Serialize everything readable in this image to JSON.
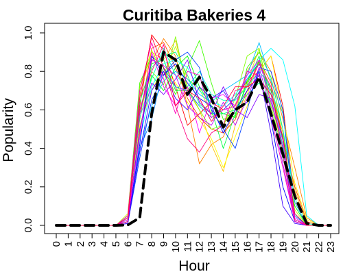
{
  "chart_data": {
    "type": "line",
    "title": "Curitiba Bakeries 4",
    "xlabel": "Hour",
    "ylabel": "Popularity",
    "x": [
      0,
      1,
      2,
      3,
      4,
      5,
      6,
      7,
      8,
      9,
      10,
      11,
      12,
      13,
      14,
      15,
      16,
      17,
      18,
      19,
      20,
      21,
      22,
      23
    ],
    "x_tick_labels": [
      "0",
      "1",
      "2",
      "3",
      "4",
      "5",
      "6",
      "7",
      "8",
      "9",
      "10",
      "11",
      "12",
      "13",
      "14",
      "15",
      "16",
      "17",
      "18",
      "19",
      "20",
      "21",
      "22",
      "23"
    ],
    "y_ticks": [
      0.0,
      0.2,
      0.4,
      0.6,
      0.8,
      1.0
    ],
    "y_tick_labels": [
      "0.0",
      "0.2",
      "0.4",
      "0.6",
      "0.8",
      "1.0"
    ],
    "xlim": [
      0,
      23
    ],
    "ylim": [
      0,
      1
    ],
    "grid": false,
    "legend": "none",
    "series": [
      {
        "color": "#FF0000",
        "values": [
          0,
          0,
          0,
          0,
          0,
          0,
          0.02,
          0.62,
          0.99,
          0.91,
          0.72,
          0.52,
          0.58,
          0.64,
          0.6,
          0.66,
          0.75,
          0.8,
          0.88,
          0.62,
          0.12,
          0,
          0,
          0
        ]
      },
      {
        "color": "#FF4000",
        "values": [
          0,
          0,
          0,
          0,
          0,
          0,
          0.05,
          0.55,
          0.92,
          0.95,
          0.82,
          0.66,
          0.56,
          0.5,
          0.48,
          0.55,
          0.7,
          0.86,
          0.74,
          0.45,
          0.2,
          0.02,
          0,
          0
        ]
      },
      {
        "color": "#FF8000",
        "values": [
          0,
          0,
          0,
          0,
          0,
          0,
          0.03,
          0.48,
          0.85,
          0.97,
          0.88,
          0.62,
          0.32,
          0.42,
          0.46,
          0.6,
          0.8,
          0.9,
          0.8,
          0.55,
          0.3,
          0.04,
          0,
          0
        ]
      },
      {
        "color": "#FFBF00",
        "values": [
          0,
          0,
          0,
          0,
          0,
          0,
          0.04,
          0.68,
          0.9,
          0.86,
          0.96,
          0.72,
          0.6,
          0.42,
          0.28,
          0.52,
          0.68,
          0.85,
          0.7,
          0.48,
          0.18,
          0.01,
          0,
          0
        ]
      },
      {
        "color": "#FFFF00",
        "values": [
          0,
          0,
          0,
          0,
          0,
          0,
          0.02,
          0.52,
          0.7,
          0.82,
          0.74,
          0.64,
          0.55,
          0.45,
          0.3,
          0.46,
          0.62,
          0.8,
          0.88,
          0.58,
          0.22,
          0.03,
          0,
          0
        ]
      },
      {
        "color": "#BFFF00",
        "values": [
          0,
          0,
          0,
          0,
          0,
          0,
          0.06,
          0.72,
          0.91,
          0.78,
          0.93,
          0.76,
          0.71,
          0.58,
          0.52,
          0.63,
          0.74,
          0.92,
          0.64,
          0.4,
          0.08,
          0,
          0,
          0
        ]
      },
      {
        "color": "#80FF00",
        "values": [
          0,
          0,
          0,
          0,
          0,
          0,
          0.03,
          0.58,
          0.8,
          0.73,
          0.98,
          0.7,
          0.6,
          0.5,
          0.52,
          0.66,
          0.88,
          0.92,
          0.62,
          0.38,
          0.1,
          0,
          0,
          0
        ]
      },
      {
        "color": "#40FF00",
        "values": [
          0,
          0,
          0,
          0,
          0,
          0,
          0.05,
          0.74,
          0.88,
          0.82,
          0.68,
          0.82,
          0.96,
          0.74,
          0.55,
          0.57,
          0.82,
          0.9,
          0.77,
          0.5,
          0.02,
          0,
          0,
          0
        ]
      },
      {
        "color": "#00FF00",
        "values": [
          0,
          0,
          0,
          0,
          0,
          0,
          0.02,
          0.5,
          0.78,
          0.7,
          0.82,
          0.88,
          0.72,
          0.62,
          0.58,
          0.56,
          0.75,
          0.85,
          0.7,
          0.45,
          0.03,
          0,
          0,
          0
        ]
      },
      {
        "color": "#00FF40",
        "values": [
          0,
          0,
          0,
          0,
          0,
          0,
          0.04,
          0.64,
          0.84,
          0.86,
          0.7,
          0.7,
          0.78,
          0.6,
          0.4,
          0.58,
          0.73,
          0.88,
          0.6,
          0.35,
          0.1,
          0,
          0,
          0
        ]
      },
      {
        "color": "#00FF80",
        "values": [
          0,
          0,
          0,
          0,
          0,
          0,
          0.03,
          0.6,
          0.82,
          0.88,
          0.9,
          0.78,
          0.63,
          0.58,
          0.58,
          0.6,
          0.68,
          0.74,
          0.64,
          0.42,
          0.06,
          0,
          0,
          0
        ]
      },
      {
        "color": "#00FFBF",
        "values": [
          0,
          0,
          0,
          0,
          0,
          0,
          0.05,
          0.56,
          0.76,
          0.92,
          0.78,
          0.72,
          0.8,
          0.68,
          0.65,
          0.65,
          0.72,
          0.8,
          0.72,
          0.5,
          0.14,
          0.01,
          0,
          0
        ]
      },
      {
        "color": "#00FFFF",
        "values": [
          0,
          0,
          0,
          0,
          0,
          0,
          0.04,
          0.45,
          0.72,
          0.84,
          0.86,
          0.82,
          0.7,
          0.64,
          0.62,
          0.68,
          0.76,
          0.86,
          0.92,
          0.86,
          0.62,
          0.05,
          0,
          0
        ]
      },
      {
        "color": "#00BFFF",
        "values": [
          0,
          0,
          0,
          0,
          0,
          0,
          0.02,
          0.4,
          0.62,
          0.75,
          0.8,
          0.76,
          0.68,
          0.64,
          0.7,
          0.74,
          0.78,
          0.95,
          0.75,
          0.58,
          0.12,
          0,
          0,
          0
        ]
      },
      {
        "color": "#0080FF",
        "values": [
          0,
          0,
          0,
          0,
          0,
          0,
          0.03,
          0.4,
          0.55,
          0.82,
          0.72,
          0.7,
          0.62,
          0.56,
          0.6,
          0.66,
          0.76,
          0.84,
          0.68,
          0.44,
          0.05,
          0,
          0,
          0
        ]
      },
      {
        "color": "#0040FF",
        "values": [
          0,
          0,
          0,
          0,
          0,
          0,
          0.01,
          0.35,
          0.65,
          0.78,
          0.86,
          0.9,
          0.82,
          0.6,
          0.5,
          0.4,
          0.6,
          0.82,
          0.8,
          0.6,
          0.02,
          0,
          0,
          0
        ]
      },
      {
        "color": "#0000FF",
        "values": [
          0,
          0,
          0,
          0,
          0,
          0,
          0.02,
          0.42,
          0.88,
          0.78,
          0.84,
          0.74,
          0.66,
          0.62,
          0.48,
          0.6,
          0.7,
          0.78,
          0.55,
          0.2,
          0.02,
          0,
          0,
          0
        ]
      },
      {
        "color": "#4000FF",
        "values": [
          0,
          0,
          0,
          0,
          0,
          0,
          0.01,
          0.38,
          0.7,
          0.8,
          0.66,
          0.6,
          0.72,
          0.66,
          0.7,
          0.6,
          0.64,
          0.8,
          0.48,
          0.1,
          0.01,
          0,
          0,
          0
        ]
      },
      {
        "color": "#8000FF",
        "values": [
          0,
          0,
          0,
          0,
          0,
          0,
          0.02,
          0.5,
          0.74,
          0.68,
          0.76,
          0.86,
          0.64,
          0.58,
          0.72,
          0.6,
          0.56,
          0.68,
          0.66,
          0.4,
          0.02,
          0,
          0,
          0
        ]
      },
      {
        "color": "#BF00FF",
        "values": [
          0,
          0,
          0,
          0,
          0,
          0,
          0.04,
          0.58,
          0.86,
          0.83,
          0.78,
          0.62,
          0.56,
          0.52,
          0.64,
          0.52,
          0.66,
          0.82,
          0.6,
          0.32,
          0.03,
          0,
          0,
          0
        ]
      },
      {
        "color": "#FF00FF",
        "values": [
          0,
          0,
          0,
          0,
          0,
          0,
          0.03,
          0.46,
          0.9,
          0.72,
          0.62,
          0.72,
          0.48,
          0.66,
          0.68,
          0.62,
          0.78,
          0.86,
          0.64,
          0.44,
          0.04,
          0,
          0,
          0
        ]
      },
      {
        "color": "#FF00BF",
        "values": [
          0,
          0,
          0,
          0,
          0,
          0,
          0.05,
          0.7,
          0.95,
          0.76,
          0.58,
          0.8,
          0.78,
          0.56,
          0.6,
          0.62,
          0.8,
          0.78,
          0.56,
          0.3,
          0.02,
          0,
          0,
          0
        ]
      },
      {
        "color": "#FF0080",
        "values": [
          0,
          0,
          0,
          0,
          0,
          0,
          0.02,
          0.6,
          0.8,
          0.94,
          0.62,
          0.45,
          0.38,
          0.48,
          0.52,
          0.7,
          0.72,
          0.84,
          0.72,
          0.36,
          0.03,
          0,
          0,
          0
        ]
      },
      {
        "color": "#FF0040",
        "values": [
          0,
          0,
          0,
          0,
          0,
          0,
          0.04,
          0.66,
          0.98,
          0.82,
          0.62,
          0.7,
          0.66,
          0.54,
          0.62,
          0.72,
          0.72,
          0.76,
          0.68,
          0.46,
          0.06,
          0,
          0,
          0
        ]
      },
      {
        "color": "#000000",
        "dashed": true,
        "values": [
          0,
          0,
          0,
          0,
          0,
          0,
          0.002,
          0.04,
          0.58,
          0.9,
          0.86,
          0.68,
          0.77,
          0.66,
          0.51,
          0.6,
          0.64,
          0.77,
          0.58,
          0.37,
          0.15,
          0.01,
          0.0,
          0.0
        ]
      }
    ]
  }
}
